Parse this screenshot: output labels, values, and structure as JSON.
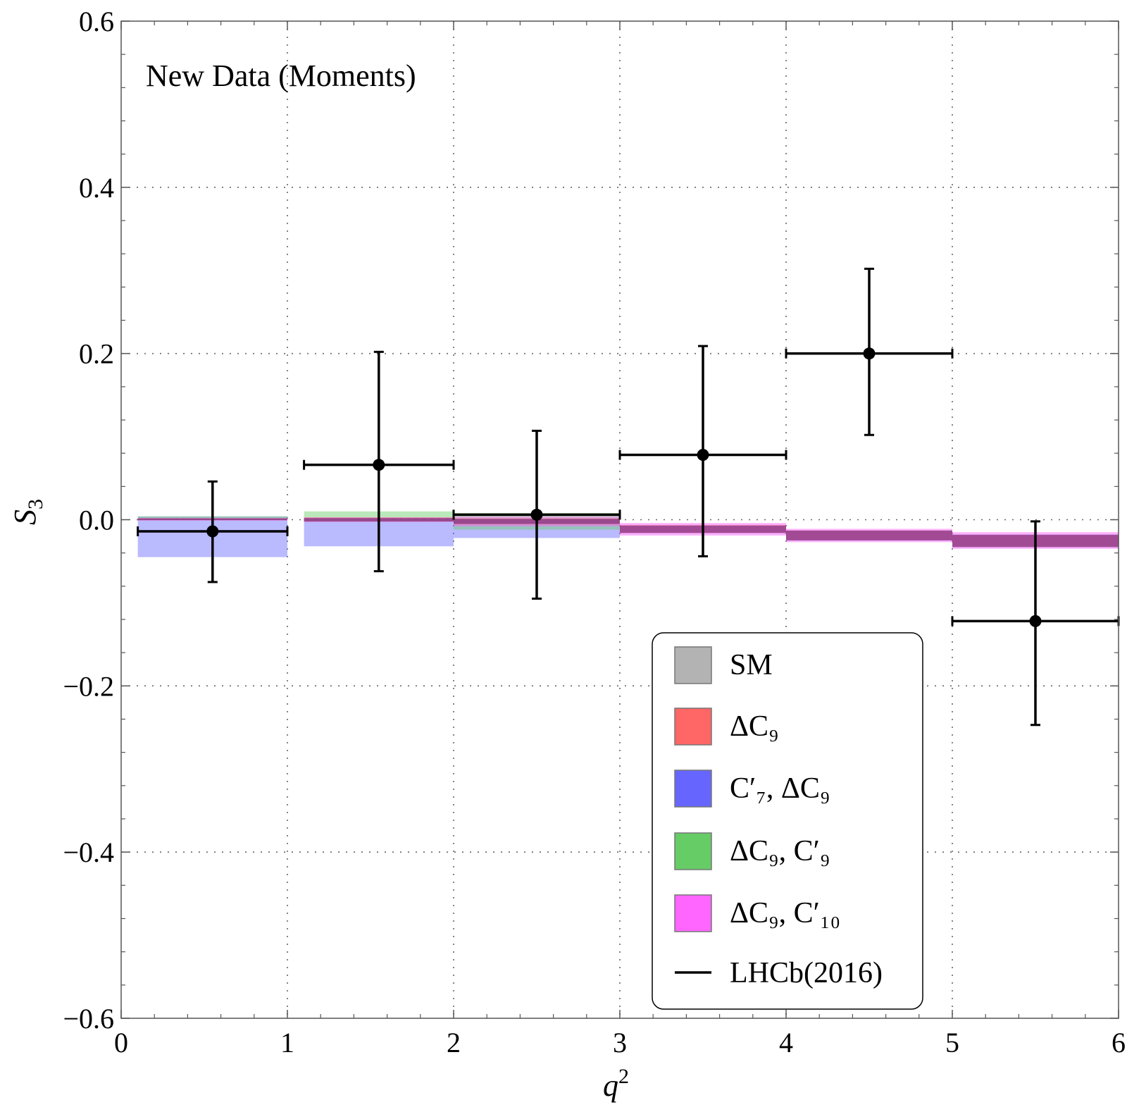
{
  "chart_data": {
    "type": "scatter",
    "title": "",
    "annotation": "New Data (Moments)",
    "xlabel": "q",
    "xlabel_sup": "2",
    "ylabel": "S",
    "ylabel_sub": "3",
    "xlim": [
      0,
      6
    ],
    "ylim": [
      -0.6,
      0.6
    ],
    "x_ticks": [
      0,
      1,
      2,
      3,
      4,
      5,
      6
    ],
    "x_tick_labels": [
      "0",
      "1",
      "2",
      "3",
      "4",
      "5",
      "6"
    ],
    "y_ticks": [
      -0.6,
      -0.4,
      -0.2,
      0.0,
      0.2,
      0.4,
      0.6
    ],
    "y_tick_labels": [
      "−0.6",
      "−0.4",
      "−0.2",
      "0.0",
      "0.2",
      "0.4",
      "0.6"
    ],
    "grid": true,
    "legend_position": "bottom-right",
    "legend": [
      {
        "key": "sm",
        "label": "SM",
        "color": "#b3b3b3",
        "type": "box"
      },
      {
        "key": "dc9",
        "label": "ΔC₉",
        "color": "#ff6666",
        "type": "box"
      },
      {
        "key": "c7",
        "label": "C′₇, ΔC₉",
        "color": "#6666ff",
        "type": "box"
      },
      {
        "key": "c9p",
        "label": "ΔC₉, C′₉",
        "color": "#66cc66",
        "type": "box"
      },
      {
        "key": "c10p",
        "label": "ΔC₉, C′₁₀",
        "color": "#ff66ff",
        "type": "box"
      },
      {
        "key": "lhcb",
        "label": "LHCb(2016)",
        "color": "#000000",
        "type": "line"
      }
    ],
    "legend_markup": [
      {
        "main": "SM"
      },
      {
        "main": "ΔC",
        "sub": "9"
      },
      {
        "italic": "C",
        "prime": "′",
        "isub": "7",
        "rest": ", ΔC",
        "sub2": "9"
      },
      {
        "main": "ΔC",
        "sub": "9",
        "rest": ", ",
        "italic": "C",
        "prime": "′",
        "isub": "9"
      },
      {
        "main": "ΔC",
        "sub": "9",
        "rest": ", ",
        "italic": "C",
        "prime": "′",
        "isub": "10"
      },
      {
        "main": "LHCb(2016)"
      }
    ],
    "bands": [
      {
        "model": "c7",
        "color": "#6666ff",
        "opacity": 0.45,
        "bins": [
          [
            0.1,
            1.0,
            -0.045,
            0.004
          ],
          [
            1.1,
            2.0,
            -0.032,
            0.0
          ],
          [
            2.0,
            3.0,
            -0.022,
            -0.003
          ]
        ]
      },
      {
        "model": "c9p",
        "color": "#66cc66",
        "opacity": 0.45,
        "bins": [
          [
            0.1,
            1.0,
            0.0,
            0.004
          ],
          [
            1.1,
            2.0,
            -0.003,
            0.01
          ],
          [
            2.0,
            3.0,
            -0.012,
            0.008
          ]
        ]
      },
      {
        "model": "c10p",
        "color": "#ff66ff",
        "opacity": 0.5,
        "bins": [
          [
            0.1,
            1.0,
            -0.001,
            0.002
          ],
          [
            1.1,
            2.0,
            -0.003,
            0.003
          ],
          [
            2.0,
            3.0,
            -0.008,
            0.004
          ],
          [
            3.0,
            4.0,
            -0.019,
            -0.004
          ],
          [
            4.0,
            5.0,
            -0.027,
            -0.011
          ],
          [
            5.0,
            6.0,
            -0.035,
            -0.015
          ]
        ]
      },
      {
        "model": "dc9",
        "color": "#ff6666",
        "opacity": 0.3,
        "bins": [
          [
            0.1,
            1.0,
            -0.001,
            0.002
          ],
          [
            1.1,
            2.0,
            -0.002,
            0.003
          ],
          [
            2.0,
            3.0,
            -0.006,
            0.002
          ],
          [
            3.0,
            4.0,
            -0.016,
            -0.006
          ],
          [
            4.0,
            5.0,
            -0.024,
            -0.013
          ],
          [
            5.0,
            6.0,
            -0.032,
            -0.019
          ]
        ]
      },
      {
        "model": "sm",
        "color": "#7a2a7a",
        "opacity": 0.7,
        "bins": [
          [
            0.1,
            1.0,
            -0.0005,
            0.0015
          ],
          [
            1.1,
            2.0,
            -0.002,
            0.002
          ],
          [
            2.0,
            3.0,
            -0.005,
            0.001
          ],
          [
            3.0,
            4.0,
            -0.016,
            -0.007
          ],
          [
            4.0,
            5.0,
            -0.025,
            -0.013
          ],
          [
            5.0,
            6.0,
            -0.033,
            -0.018
          ]
        ]
      }
    ],
    "lhcb_data": [
      {
        "x": 0.55,
        "xlo": 0.1,
        "xhi": 1.0,
        "y": -0.014,
        "ylo": -0.075,
        "yhi": 0.046
      },
      {
        "x": 1.55,
        "xlo": 1.1,
        "xhi": 2.0,
        "y": 0.066,
        "ylo": -0.062,
        "yhi": 0.202
      },
      {
        "x": 2.5,
        "xlo": 2.0,
        "xhi": 3.0,
        "y": 0.006,
        "ylo": -0.095,
        "yhi": 0.107
      },
      {
        "x": 3.5,
        "xlo": 3.0,
        "xhi": 4.0,
        "y": 0.078,
        "ylo": -0.044,
        "yhi": 0.209
      },
      {
        "x": 4.5,
        "xlo": 4.0,
        "xhi": 5.0,
        "y": 0.2,
        "ylo": 0.102,
        "yhi": 0.302
      },
      {
        "x": 5.5,
        "xlo": 5.0,
        "xhi": 6.0,
        "y": -0.122,
        "ylo": -0.247,
        "yhi": -0.002
      }
    ]
  }
}
